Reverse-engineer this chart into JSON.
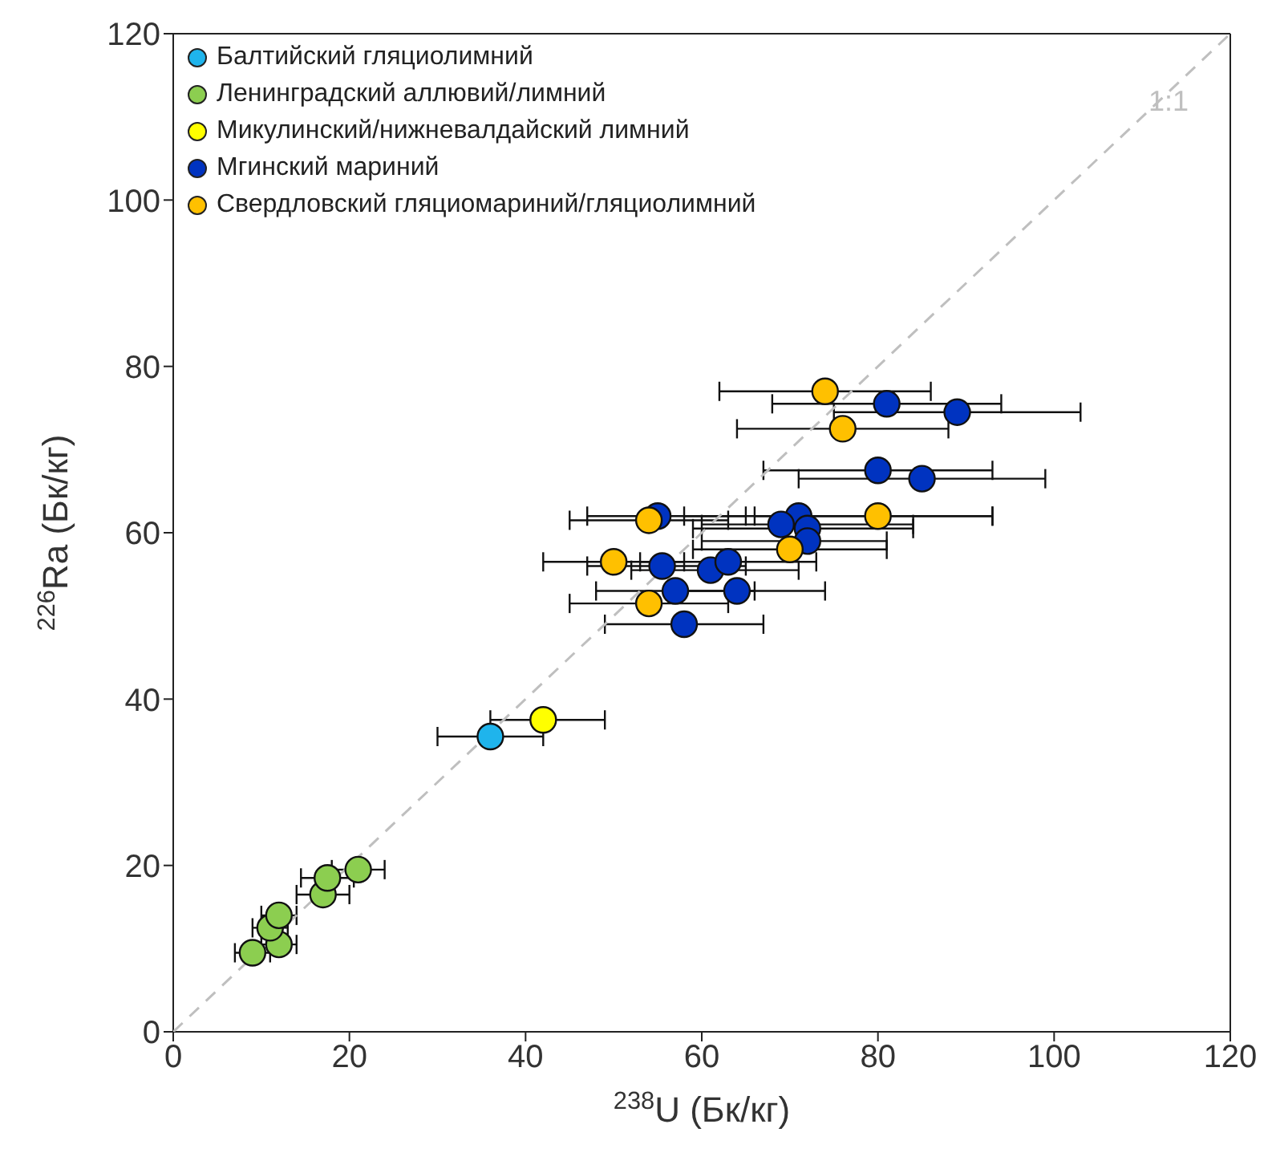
{
  "chart_data": {
    "type": "scatter",
    "xlabel": "$^{238}$U (Бк/кг)",
    "ylabel": "$^{226}$Ra (Бк/кг)",
    "xlim": [
      0,
      120
    ],
    "ylim": [
      0,
      120
    ],
    "xticks": [
      0,
      20,
      40,
      60,
      80,
      100,
      120
    ],
    "yticks": [
      0,
      20,
      40,
      60,
      80,
      100,
      120
    ],
    "grid": false,
    "legend": "top left",
    "marker": "circle",
    "annotations": [
      {
        "text": "1:1",
        "x": 113,
        "y": 112
      }
    ],
    "series": [
      {
        "type": "line",
        "color": "#bfbfbf",
        "line_style": "dashed",
        "marker": "none",
        "x": [
          0,
          120
        ],
        "values": [
          0,
          120
        ]
      },
      {
        "name": "Балтийский гляциолимний",
        "color": "#1fb4ec",
        "x": [
          36
        ],
        "values": [
          35.5
        ],
        "xerrors": [
          [
            30,
            42
          ]
        ]
      },
      {
        "name": "Ленинградский аллювий/лимний",
        "color": "#8cce50",
        "x": [
          9,
          12,
          11,
          12,
          17,
          17.5,
          21
        ],
        "values": [
          9.5,
          10.5,
          12.5,
          14,
          16.5,
          18.5,
          19.5
        ],
        "xerrors": [
          2,
          2,
          2,
          2,
          3,
          3,
          3
        ]
      },
      {
        "name": "Микулинский/нижневалдайский лимний",
        "color": "#ffff00",
        "x": [
          42
        ],
        "values": [
          37.5
        ],
        "xerrors": [
          [
            36,
            49
          ]
        ]
      },
      {
        "name": "Мгинский мариний",
        "color": "#0033c0",
        "x": [
          81,
          89,
          80,
          85,
          55,
          71,
          69,
          72,
          72,
          55.5,
          61,
          63,
          57,
          64,
          58
        ],
        "values": [
          75.5,
          74.5,
          67.5,
          66.5,
          62,
          62,
          61,
          60.5,
          59,
          56,
          55.5,
          56.5,
          53,
          53,
          49
        ],
        "xerrors": [
          [
            68,
            94
          ],
          [
            75,
            103
          ],
          [
            67,
            93
          ],
          [
            71,
            99
          ],
          [
            47,
            65
          ],
          [
            58,
            93
          ],
          [
            60,
            84
          ],
          [
            59,
            84
          ],
          [
            60,
            81
          ],
          [
            47,
            65
          ],
          [
            52,
            71
          ],
          [
            53,
            73
          ],
          [
            48,
            66
          ],
          [
            56,
            74
          ],
          [
            49,
            67
          ]
        ]
      },
      {
        "name": "Свердловский гляциомариний/гляциолимний",
        "color": "#ffc000",
        "x": [
          74,
          76,
          54,
          80,
          70,
          50,
          54
        ],
        "values": [
          77,
          72.5,
          61.5,
          62,
          58,
          56.5,
          51.5
        ],
        "xerrors": [
          [
            62,
            86
          ],
          [
            64,
            88
          ],
          [
            45,
            63
          ],
          [
            66,
            93
          ],
          [
            59,
            81
          ],
          [
            42,
            58
          ],
          [
            45,
            63
          ]
        ]
      }
    ]
  }
}
